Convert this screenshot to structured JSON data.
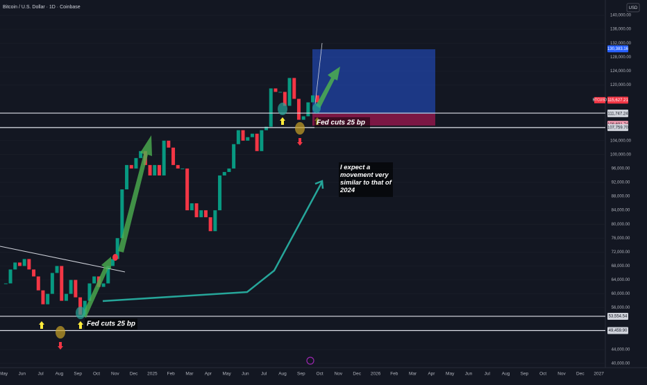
{
  "chart_data": {
    "type": "candlestick",
    "title": "Bitcoin / U.S. Dollar · 1D · Coinbase",
    "currency": "USD",
    "symbol": "BTCUSD",
    "categories": [
      "May",
      "Jun",
      "Jul",
      "Aug",
      "Sep",
      "Oct",
      "Nov",
      "Dec",
      "2025",
      "Feb",
      "Mar",
      "Apr",
      "May",
      "Jun",
      "Jul",
      "Aug",
      "Sep",
      "Oct",
      "Nov",
      "Dec",
      "2026",
      "Feb",
      "Mar",
      "Apr",
      "May",
      "Jun",
      "Jul",
      "Aug",
      "Sep",
      "Oct",
      "Nov",
      "Dec",
      "2027"
    ],
    "series": [
      {
        "name": "BTCUSD",
        "up_color": "#089981",
        "down_color": "#f23645",
        "values": [
          [
            63000,
            67000,
            69000,
            68000
          ],
          [
            70000,
            67000,
            65000,
            61000
          ],
          [
            57000,
            60000,
            66000,
            68000
          ],
          [
            58000,
            60000,
            64000,
            59000
          ],
          [
            54000,
            58000,
            63000,
            65000
          ],
          [
            62000,
            63000,
            68000,
            70000
          ],
          [
            76000,
            90000,
            97000,
            96000
          ],
          [
            99000,
            101000,
            97000,
            94000
          ],
          [
            97000,
            94000,
            104000,
            102000
          ],
          [
            97000,
            96000,
            96000,
            84000
          ],
          [
            86000,
            82000,
            84000,
            82000
          ],
          [
            78000,
            84000,
            94000,
            95000
          ],
          [
            96000,
            103000,
            107000,
            104000
          ],
          [
            105000,
            106000,
            101000,
            107000
          ],
          [
            108000,
            119000,
            118000,
            118000
          ],
          [
            114000,
            122000,
            116000,
            110000
          ],
          [
            111000,
            115000,
            117000,
            115000
          ],
          null,
          null,
          null,
          null,
          null,
          null,
          null,
          null,
          null,
          null,
          null,
          null,
          null,
          null,
          null,
          null
        ]
      }
    ],
    "ylim": [
      38800,
      142800
    ],
    "yticks": [
      {
        "value": 140000,
        "label": "140,000.00"
      },
      {
        "value": 136000,
        "label": "136,000.00"
      },
      {
        "value": 132000,
        "label": "132,000.00"
      },
      {
        "value": 128000,
        "label": "128,000.00"
      },
      {
        "value": 124000,
        "label": "124,000.00"
      },
      {
        "value": 120000,
        "label": "120,000.00"
      },
      {
        "value": 104000,
        "label": "104,000.00"
      },
      {
        "value": 100000,
        "label": "100,000.00"
      },
      {
        "value": 96000,
        "label": "96,000.00"
      },
      {
        "value": 92000,
        "label": "92,000.00"
      },
      {
        "value": 88000,
        "label": "88,000.00"
      },
      {
        "value": 84000,
        "label": "84,000.00"
      },
      {
        "value": 80000,
        "label": "80,000.00"
      },
      {
        "value": 76000,
        "label": "76,000.00"
      },
      {
        "value": 72000,
        "label": "72,000.00"
      },
      {
        "value": 68000,
        "label": "68,000.00"
      },
      {
        "value": 64000,
        "label": "64,000.00"
      },
      {
        "value": 60000,
        "label": "60,000.00"
      },
      {
        "value": 56000,
        "label": "56,000.00"
      },
      {
        "value": 44000,
        "label": "44,000.00"
      },
      {
        "value": 40000,
        "label": "40,000.00"
      }
    ],
    "price_labels": [
      {
        "value": 130383.16,
        "label": "130,383.16",
        "color": "#2962ff",
        "line": false
      },
      {
        "value": 115627.21,
        "label": "115,627.21",
        "color": "#f23645",
        "line": false
      },
      {
        "value": 111906.44,
        "label": "111,906.44",
        "color": "#d1d4dc",
        "line": true
      },
      {
        "value": 111747.24,
        "label": "111,747.24",
        "color": "#d1d4dc",
        "line": false
      },
      {
        "value": 108691.74,
        "label": "108,691.74",
        "color": "#f7a1b5",
        "line": false
      },
      {
        "value": 107759.7,
        "label": "107,759.70",
        "color": "#d1d4dc",
        "line": true
      },
      {
        "value": 53554.54,
        "label": "53,554.54",
        "color": "#d1d4dc",
        "line": true
      },
      {
        "value": 49459.9,
        "label": "49,459.90",
        "color": "#d1d4dc",
        "line": true
      }
    ],
    "annotations": [
      "Fed cuts 25 bp",
      "Fed cuts 25 bp",
      "I expect a movement very similar to that of 2024"
    ]
  }
}
